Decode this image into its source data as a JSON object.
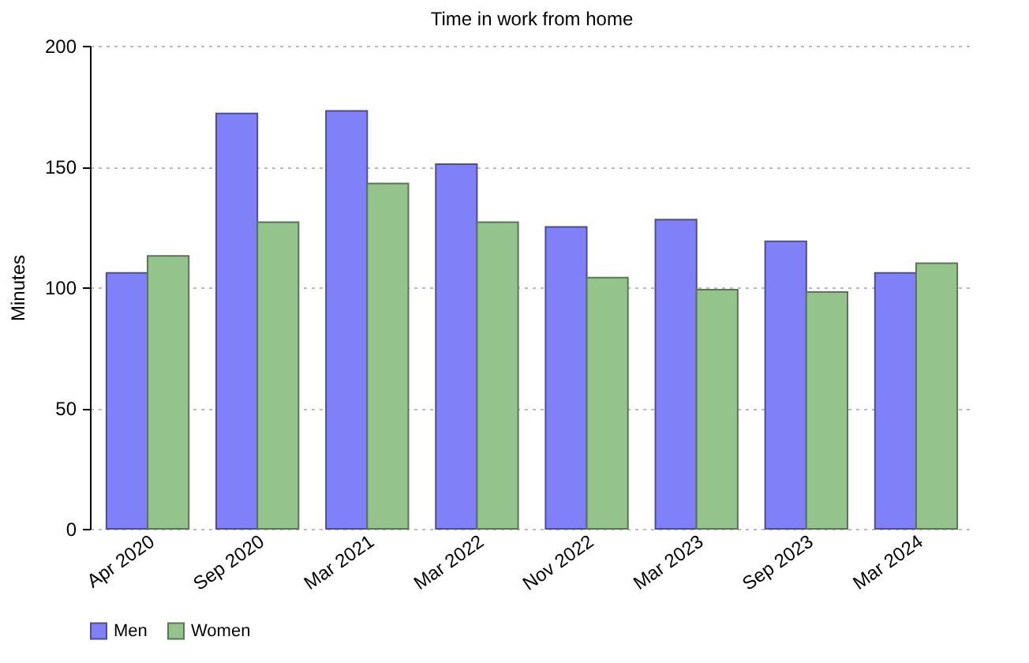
{
  "chart_data": {
    "type": "bar",
    "title": "Time in work from home",
    "ylabel": "Minutes",
    "categories": [
      "Apr 2020",
      "Sep 2020",
      "Mar 2021",
      "Mar 2022",
      "Nov 2022",
      "Mar 2023",
      "Sep 2023",
      "Mar 2024"
    ],
    "series": [
      {
        "name": "Men",
        "color": "#8080f8",
        "values": [
          106,
          172,
          173,
          151,
          125,
          128,
          119,
          106
        ]
      },
      {
        "name": "Women",
        "color": "#94c48c",
        "values": [
          113,
          127,
          143,
          127,
          104,
          99,
          98,
          110
        ]
      }
    ],
    "ylim": [
      0,
      200
    ],
    "yticks": [
      0,
      50,
      100,
      150,
      200
    ],
    "grid": "y",
    "legend": "bottom"
  }
}
